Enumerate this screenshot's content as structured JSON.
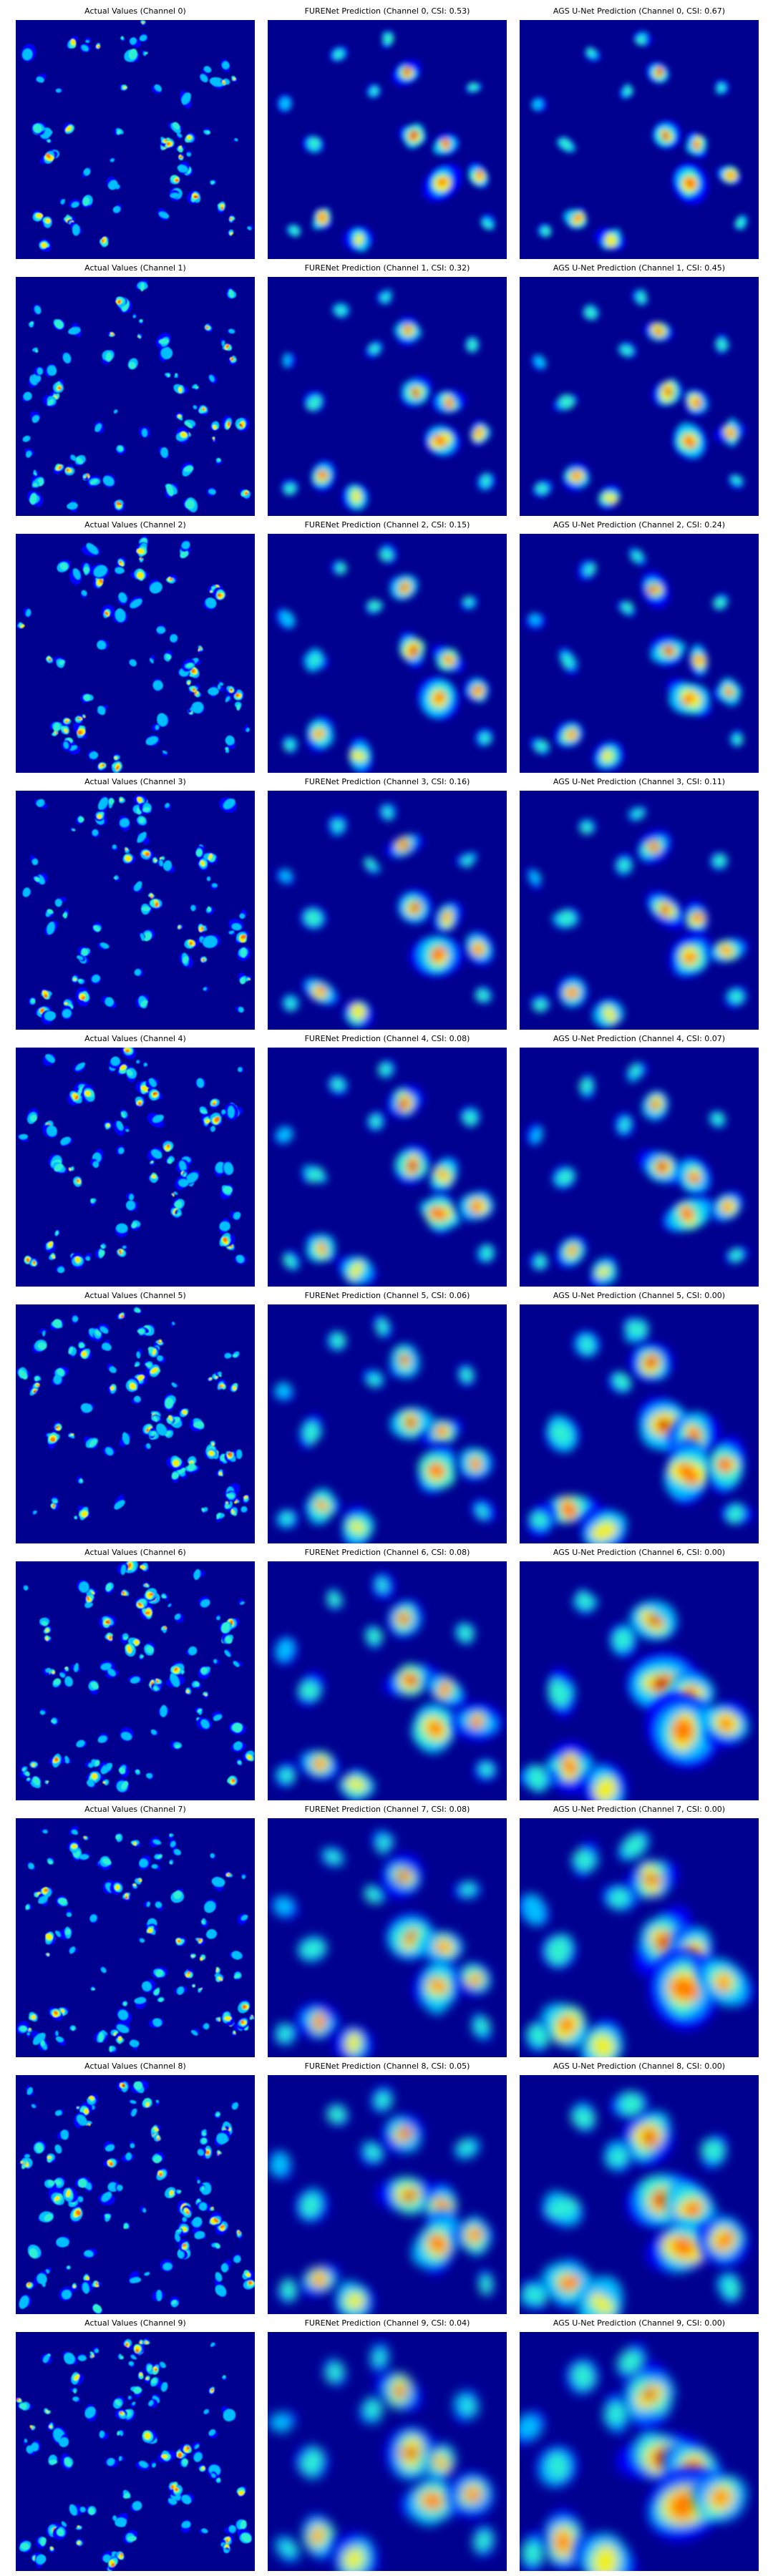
{
  "figure": {
    "colormap": "jet",
    "colors": {
      "background": "#00008f",
      "low": "#0000ff",
      "mid_low": "#00bfff",
      "mid": "#2ef0d0",
      "mid_high": "#f0f000",
      "high": "#ff7f00",
      "peak": "#b00000"
    },
    "columns": [
      "actual",
      "furenet",
      "ags_unet"
    ],
    "rows": [
      {
        "channel": 0,
        "titles": [
          "Actual Values (Channel 0)",
          "FURENet Prediction (Channel 0, CSI: 0.53)",
          "AGS U-Net Prediction (Channel 0, CSI: 0.67)"
        ],
        "csi": {
          "furenet": 0.53,
          "ags_unet": 0.67
        }
      },
      {
        "channel": 1,
        "titles": [
          "Actual Values (Channel 1)",
          "FURENet Prediction (Channel 1, CSI: 0.32)",
          "AGS U-Net Prediction (Channel 1, CSI: 0.45)"
        ],
        "csi": {
          "furenet": 0.32,
          "ags_unet": 0.45
        }
      },
      {
        "channel": 2,
        "titles": [
          "Actual Values (Channel 2)",
          "FURENet Prediction (Channel 2, CSI: 0.15)",
          "AGS U-Net Prediction (Channel 2, CSI: 0.24)"
        ],
        "csi": {
          "furenet": 0.15,
          "ags_unet": 0.24
        }
      },
      {
        "channel": 3,
        "titles": [
          "Actual Values (Channel 3)",
          "FURENet Prediction (Channel 3, CSI: 0.16)",
          "AGS U-Net Prediction (Channel 3, CSI: 0.11)"
        ],
        "csi": {
          "furenet": 0.16,
          "ags_unet": 0.11
        }
      },
      {
        "channel": 4,
        "titles": [
          "Actual Values (Channel 4)",
          "FURENet Prediction (Channel 4, CSI: 0.08)",
          "AGS U-Net Prediction (Channel 4, CSI: 0.07)"
        ],
        "csi": {
          "furenet": 0.08,
          "ags_unet": 0.07
        }
      },
      {
        "channel": 5,
        "titles": [
          "Actual Values (Channel 5)",
          "FURENet Prediction (Channel 5, CSI: 0.06)",
          "AGS U-Net Prediction (Channel 5, CSI: 0.00)"
        ],
        "csi": {
          "furenet": 0.06,
          "ags_unet": 0.0
        }
      },
      {
        "channel": 6,
        "titles": [
          "Actual Values (Channel 6)",
          "FURENet Prediction (Channel 6, CSI: 0.08)",
          "AGS U-Net Prediction (Channel 6, CSI: 0.00)"
        ],
        "csi": {
          "furenet": 0.08,
          "ags_unet": 0.0
        }
      },
      {
        "channel": 7,
        "titles": [
          "Actual Values (Channel 7)",
          "FURENet Prediction (Channel 7, CSI: 0.08)",
          "AGS U-Net Prediction (Channel 7, CSI: 0.00)"
        ],
        "csi": {
          "furenet": 0.08,
          "ags_unet": 0.0
        }
      },
      {
        "channel": 8,
        "titles": [
          "Actual Values (Channel 8)",
          "FURENet Prediction (Channel 8, CSI: 0.05)",
          "AGS U-Net Prediction (Channel 8, CSI: 0.00)"
        ],
        "csi": {
          "furenet": 0.05,
          "ags_unet": 0.0
        }
      },
      {
        "channel": 9,
        "titles": [
          "Actual Values (Channel 9)",
          "FURENet Prediction (Channel 9, CSI: 0.04)",
          "AGS U-Net Prediction (Channel 9, CSI: 0.00)"
        ],
        "csi": {
          "furenet": 0.04,
          "ags_unet": 0.0
        }
      }
    ]
  }
}
